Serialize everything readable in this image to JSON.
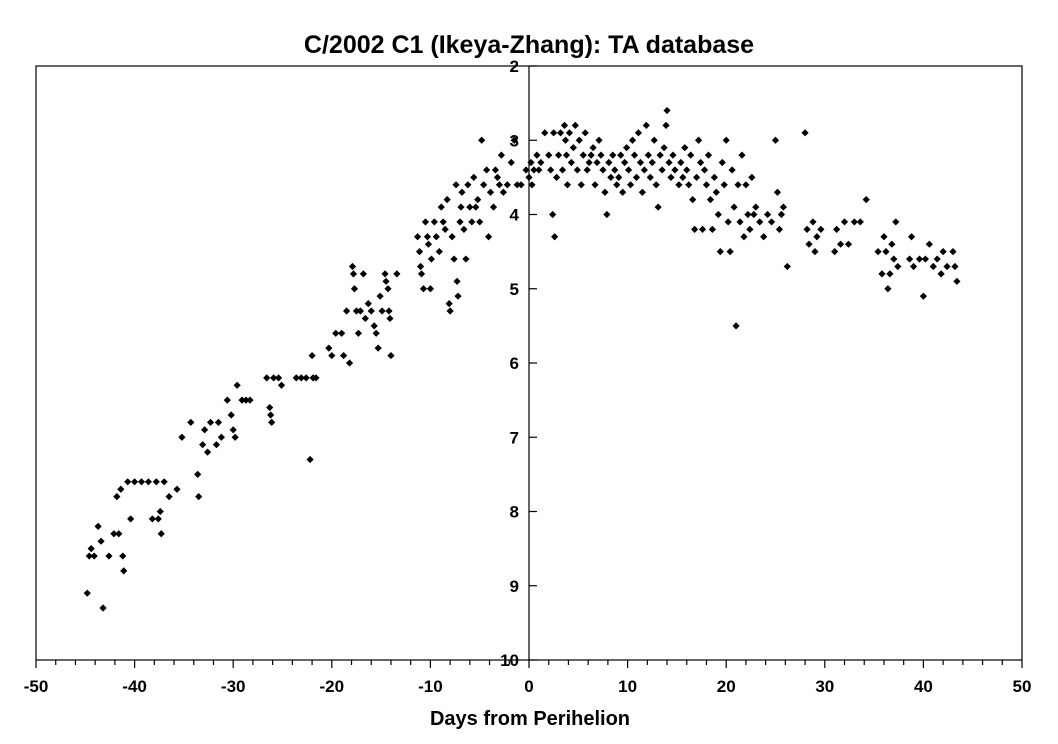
{
  "chart_data": {
    "type": "scatter",
    "title": "C/2002 C1 (Ikeya-Zhang): TA database",
    "xlabel": "Days from Perihelion",
    "ylabel": "",
    "xlim": [
      -50,
      50
    ],
    "ylim": [
      10,
      2
    ],
    "y_inverted": true,
    "x_ticks": [
      "-50",
      "-40",
      "-30",
      "-20",
      "-10",
      "0",
      "10",
      "20",
      "30",
      "40",
      "50"
    ],
    "y_ticks": [
      "2",
      "3",
      "4",
      "5",
      "6",
      "7",
      "8",
      "9",
      "10"
    ],
    "marker": "diamond",
    "marker_color": "#000000",
    "grid": false,
    "legend": "none",
    "series": [
      {
        "points": [
          [
            -44.8,
            9.1
          ],
          [
            -44.6,
            8.6
          ],
          [
            -44.4,
            8.5
          ],
          [
            -44.1,
            8.6
          ],
          [
            -43.7,
            8.2
          ],
          [
            -43.4,
            8.4
          ],
          [
            -43.2,
            9.3
          ],
          [
            -42.6,
            8.6
          ],
          [
            -42.1,
            8.3
          ],
          [
            -41.8,
            7.8
          ],
          [
            -41.6,
            8.3
          ],
          [
            -41.4,
            7.7
          ],
          [
            -41.2,
            8.6
          ],
          [
            -41.1,
            8.8
          ],
          [
            -40.7,
            7.6
          ],
          [
            -40.4,
            8.1
          ],
          [
            -40.0,
            7.6
          ],
          [
            -39.3,
            7.6
          ],
          [
            -38.6,
            7.6
          ],
          [
            -38.2,
            8.1
          ],
          [
            -37.8,
            7.6
          ],
          [
            -37.6,
            8.1
          ],
          [
            -37.4,
            8.0
          ],
          [
            -37.3,
            8.3
          ],
          [
            -37.0,
            7.6
          ],
          [
            -36.5,
            7.8
          ],
          [
            -35.7,
            7.7
          ],
          [
            -35.2,
            7.0
          ],
          [
            -34.3,
            6.8
          ],
          [
            -33.6,
            7.5
          ],
          [
            -33.5,
            7.8
          ],
          [
            -33.1,
            7.1
          ],
          [
            -32.9,
            6.9
          ],
          [
            -32.6,
            7.2
          ],
          [
            -32.3,
            6.8
          ],
          [
            -31.7,
            7.1
          ],
          [
            -31.5,
            6.8
          ],
          [
            -31.2,
            7.0
          ],
          [
            -30.6,
            6.5
          ],
          [
            -30.2,
            6.7
          ],
          [
            -30.0,
            6.9
          ],
          [
            -29.8,
            7.0
          ],
          [
            -29.6,
            6.3
          ],
          [
            -29.1,
            6.5
          ],
          [
            -28.7,
            6.5
          ],
          [
            -28.3,
            6.5
          ],
          [
            -26.6,
            6.2
          ],
          [
            -26.3,
            6.6
          ],
          [
            -26.2,
            6.7
          ],
          [
            -26.1,
            6.8
          ],
          [
            -25.9,
            6.2
          ],
          [
            -25.4,
            6.2
          ],
          [
            -25.1,
            6.3
          ],
          [
            -23.6,
            6.2
          ],
          [
            -23.1,
            6.2
          ],
          [
            -22.6,
            6.2
          ],
          [
            -22.2,
            7.3
          ],
          [
            -21.9,
            6.2
          ],
          [
            -21.6,
            6.2
          ],
          [
            -22.0,
            5.9
          ],
          [
            -20.3,
            5.8
          ],
          [
            -20.0,
            5.9
          ],
          [
            -19.6,
            5.6
          ],
          [
            -19.0,
            5.6
          ],
          [
            -18.8,
            5.9
          ],
          [
            -18.5,
            5.3
          ],
          [
            -18.2,
            6.0
          ],
          [
            -17.9,
            4.7
          ],
          [
            -17.8,
            4.8
          ],
          [
            -17.7,
            5.0
          ],
          [
            -17.5,
            5.3
          ],
          [
            -17.3,
            5.6
          ],
          [
            -17.1,
            5.3
          ],
          [
            -16.8,
            4.8
          ],
          [
            -16.6,
            5.4
          ],
          [
            -16.3,
            5.2
          ],
          [
            -16.0,
            5.3
          ],
          [
            -15.7,
            5.5
          ],
          [
            -15.5,
            5.6
          ],
          [
            -15.3,
            5.8
          ],
          [
            -15.1,
            5.1
          ],
          [
            -14.9,
            5.3
          ],
          [
            -14.6,
            4.8
          ],
          [
            -14.5,
            4.9
          ],
          [
            -14.3,
            5.0
          ],
          [
            -14.2,
            5.3
          ],
          [
            -14.1,
            5.4
          ],
          [
            -14.0,
            5.9
          ],
          [
            -13.4,
            4.8
          ],
          [
            -11.3,
            4.3
          ],
          [
            -11.1,
            4.5
          ],
          [
            -11.0,
            4.7
          ],
          [
            -10.9,
            4.8
          ],
          [
            -10.7,
            5.0
          ],
          [
            -10.5,
            4.1
          ],
          [
            -10.3,
            4.3
          ],
          [
            -10.2,
            4.4
          ],
          [
            -10.0,
            5.0
          ],
          [
            -9.9,
            4.6
          ],
          [
            -9.6,
            4.1
          ],
          [
            -9.4,
            4.3
          ],
          [
            -9.1,
            4.5
          ],
          [
            -8.9,
            3.9
          ],
          [
            -8.7,
            4.1
          ],
          [
            -8.5,
            4.2
          ],
          [
            -8.3,
            3.8
          ],
          [
            -8.1,
            5.2
          ],
          [
            -8.0,
            5.3
          ],
          [
            -7.8,
            4.3
          ],
          [
            -7.6,
            4.6
          ],
          [
            -7.4,
            3.6
          ],
          [
            -7.3,
            4.9
          ],
          [
            -7.2,
            5.1
          ],
          [
            -7.0,
            4.1
          ],
          [
            -6.9,
            3.9
          ],
          [
            -6.8,
            3.7
          ],
          [
            -6.6,
            4.2
          ],
          [
            -6.4,
            4.6
          ],
          [
            -6.2,
            3.6
          ],
          [
            -6.0,
            3.9
          ],
          [
            -5.8,
            4.1
          ],
          [
            -5.6,
            3.5
          ],
          [
            -5.4,
            3.9
          ],
          [
            -5.2,
            3.8
          ],
          [
            -5.0,
            4.1
          ],
          [
            -4.8,
            3.0
          ],
          [
            -4.6,
            3.6
          ],
          [
            -4.3,
            3.4
          ],
          [
            -4.1,
            4.3
          ],
          [
            -3.9,
            3.7
          ],
          [
            -3.6,
            3.9
          ],
          [
            -3.4,
            3.4
          ],
          [
            -3.2,
            3.5
          ],
          [
            -3.0,
            3.6
          ],
          [
            -2.8,
            3.2
          ],
          [
            -2.6,
            3.7
          ],
          [
            -2.2,
            3.6
          ],
          [
            -1.8,
            3.3
          ],
          [
            -1.5,
            3.0
          ],
          [
            -1.2,
            3.6
          ],
          [
            -0.8,
            3.6
          ],
          [
            -0.3,
            3.4
          ],
          [
            0.0,
            3.5
          ],
          [
            0.2,
            3.3
          ],
          [
            0.3,
            3.6
          ],
          [
            0.5,
            3.4
          ],
          [
            0.8,
            3.2
          ],
          [
            1.0,
            3.4
          ],
          [
            1.2,
            3.3
          ],
          [
            1.6,
            2.9
          ],
          [
            2.0,
            3.2
          ],
          [
            2.2,
            3.4
          ],
          [
            2.4,
            4.0
          ],
          [
            2.5,
            2.9
          ],
          [
            2.6,
            4.3
          ],
          [
            2.8,
            3.5
          ],
          [
            3.0,
            3.2
          ],
          [
            3.2,
            2.9
          ],
          [
            3.4,
            3.4
          ],
          [
            3.6,
            2.8
          ],
          [
            3.7,
            3.0
          ],
          [
            3.8,
            3.2
          ],
          [
            3.9,
            3.6
          ],
          [
            4.1,
            2.9
          ],
          [
            4.3,
            3.3
          ],
          [
            4.5,
            3.1
          ],
          [
            4.7,
            2.8
          ],
          [
            4.9,
            3.4
          ],
          [
            5.1,
            3.0
          ],
          [
            5.3,
            3.6
          ],
          [
            5.5,
            3.2
          ],
          [
            5.7,
            2.9
          ],
          [
            5.9,
            3.4
          ],
          [
            6.1,
            3.3
          ],
          [
            6.3,
            3.2
          ],
          [
            6.5,
            3.1
          ],
          [
            6.7,
            3.6
          ],
          [
            6.9,
            3.3
          ],
          [
            7.1,
            3.0
          ],
          [
            7.3,
            3.2
          ],
          [
            7.5,
            3.4
          ],
          [
            7.7,
            3.7
          ],
          [
            7.9,
            4.0
          ],
          [
            8.1,
            3.3
          ],
          [
            8.3,
            3.5
          ],
          [
            8.5,
            3.2
          ],
          [
            8.7,
            3.4
          ],
          [
            8.9,
            3.6
          ],
          [
            9.1,
            3.5
          ],
          [
            9.3,
            3.2
          ],
          [
            9.5,
            3.7
          ],
          [
            9.7,
            3.3
          ],
          [
            9.9,
            3.1
          ],
          [
            10.1,
            3.4
          ],
          [
            10.3,
            3.6
          ],
          [
            10.5,
            3.0
          ],
          [
            10.7,
            3.2
          ],
          [
            10.9,
            3.5
          ],
          [
            11.1,
            2.9
          ],
          [
            11.3,
            3.3
          ],
          [
            11.5,
            3.7
          ],
          [
            11.7,
            3.4
          ],
          [
            11.9,
            2.8
          ],
          [
            12.1,
            3.2
          ],
          [
            12.3,
            3.5
          ],
          [
            12.5,
            3.3
          ],
          [
            12.7,
            3.0
          ],
          [
            12.9,
            3.6
          ],
          [
            13.1,
            3.9
          ],
          [
            13.3,
            3.2
          ],
          [
            13.5,
            3.4
          ],
          [
            13.7,
            3.1
          ],
          [
            13.9,
            2.8
          ],
          [
            14.0,
            2.6
          ],
          [
            14.2,
            3.3
          ],
          [
            14.4,
            3.5
          ],
          [
            14.6,
            3.2
          ],
          [
            14.8,
            3.4
          ],
          [
            15.2,
            3.6
          ],
          [
            15.4,
            3.3
          ],
          [
            15.6,
            3.5
          ],
          [
            15.8,
            3.1
          ],
          [
            16.0,
            3.4
          ],
          [
            16.2,
            3.6
          ],
          [
            16.4,
            3.2
          ],
          [
            16.6,
            3.8
          ],
          [
            16.8,
            4.2
          ],
          [
            17.0,
            3.5
          ],
          [
            17.2,
            3.0
          ],
          [
            17.4,
            3.3
          ],
          [
            17.6,
            4.2
          ],
          [
            17.8,
            3.4
          ],
          [
            18.0,
            3.6
          ],
          [
            18.2,
            3.2
          ],
          [
            18.4,
            3.8
          ],
          [
            18.6,
            4.2
          ],
          [
            18.8,
            3.5
          ],
          [
            19.0,
            3.7
          ],
          [
            19.2,
            4.0
          ],
          [
            19.4,
            4.5
          ],
          [
            19.6,
            3.3
          ],
          [
            19.8,
            3.6
          ],
          [
            20.0,
            3.0
          ],
          [
            20.2,
            4.1
          ],
          [
            20.4,
            4.5
          ],
          [
            20.6,
            3.4
          ],
          [
            20.8,
            3.9
          ],
          [
            21.0,
            5.5
          ],
          [
            21.2,
            3.6
          ],
          [
            21.4,
            4.1
          ],
          [
            21.6,
            3.2
          ],
          [
            21.8,
            4.3
          ],
          [
            22.0,
            3.6
          ],
          [
            22.2,
            4.0
          ],
          [
            22.4,
            4.2
          ],
          [
            22.6,
            3.5
          ],
          [
            22.8,
            4.0
          ],
          [
            23.0,
            3.9
          ],
          [
            23.4,
            4.1
          ],
          [
            23.8,
            4.3
          ],
          [
            24.2,
            4.0
          ],
          [
            24.6,
            4.1
          ],
          [
            25.0,
            3.0
          ],
          [
            25.2,
            3.7
          ],
          [
            25.4,
            4.2
          ],
          [
            25.6,
            4.0
          ],
          [
            25.8,
            3.9
          ],
          [
            26.2,
            4.7
          ],
          [
            28.0,
            2.9
          ],
          [
            28.2,
            4.2
          ],
          [
            28.4,
            4.4
          ],
          [
            28.8,
            4.1
          ],
          [
            29.0,
            4.5
          ],
          [
            29.2,
            4.3
          ],
          [
            29.6,
            4.2
          ],
          [
            31.0,
            4.5
          ],
          [
            31.2,
            4.2
          ],
          [
            31.6,
            4.4
          ],
          [
            32.0,
            4.1
          ],
          [
            32.4,
            4.4
          ],
          [
            33.0,
            4.1
          ],
          [
            33.6,
            4.1
          ],
          [
            34.2,
            3.8
          ],
          [
            35.4,
            4.5
          ],
          [
            35.8,
            4.8
          ],
          [
            36.0,
            4.3
          ],
          [
            36.2,
            4.5
          ],
          [
            36.4,
            5.0
          ],
          [
            36.6,
            4.8
          ],
          [
            36.8,
            4.4
          ],
          [
            37.0,
            4.6
          ],
          [
            37.2,
            4.1
          ],
          [
            37.4,
            4.7
          ],
          [
            38.6,
            4.6
          ],
          [
            38.8,
            4.3
          ],
          [
            39.0,
            4.7
          ],
          [
            39.6,
            4.6
          ],
          [
            40.0,
            5.1
          ],
          [
            40.2,
            4.6
          ],
          [
            40.6,
            4.4
          ],
          [
            41.0,
            4.7
          ],
          [
            41.4,
            4.6
          ],
          [
            41.8,
            4.8
          ],
          [
            42.0,
            4.5
          ],
          [
            42.4,
            4.7
          ],
          [
            43.0,
            4.5
          ],
          [
            43.2,
            4.7
          ],
          [
            43.4,
            4.9
          ]
        ]
      }
    ]
  }
}
